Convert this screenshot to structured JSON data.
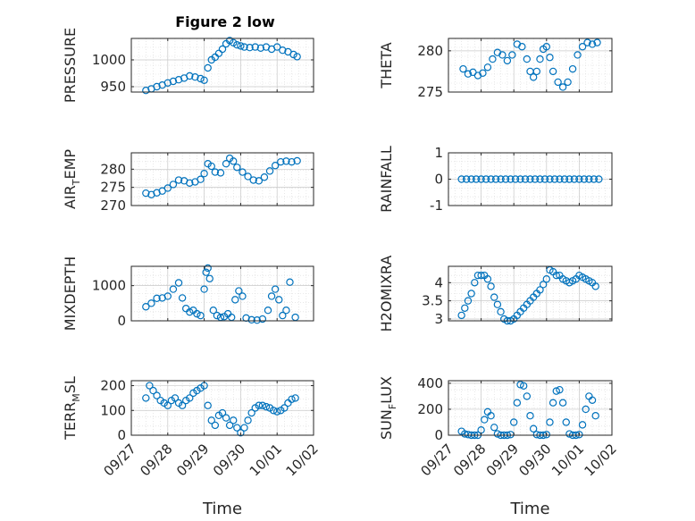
{
  "title": "Figure 2 low",
  "chart_data": [
    {
      "type": "scatter",
      "ylabel": "PRESSURE",
      "ylim": [
        940,
        1040
      ],
      "yticks": [
        950,
        1000
      ],
      "xlim": [
        0,
        5
      ],
      "grid": true,
      "x": [
        0.4,
        0.55,
        0.7,
        0.85,
        1.0,
        1.15,
        1.3,
        1.45,
        1.6,
        1.75,
        1.9,
        2.0,
        2.1,
        2.2,
        2.3,
        2.4,
        2.5,
        2.6,
        2.7,
        2.8,
        2.9,
        3.0,
        3.1,
        3.25,
        3.4,
        3.55,
        3.7,
        3.85,
        4.0,
        4.15,
        4.3,
        4.45,
        4.55
      ],
      "y": [
        943,
        946,
        950,
        953,
        957,
        960,
        963,
        966,
        970,
        968,
        965,
        962,
        985,
        1000,
        1005,
        1012,
        1020,
        1030,
        1036,
        1032,
        1028,
        1026,
        1024,
        1023,
        1024,
        1022,
        1024,
        1020,
        1024,
        1018,
        1015,
        1010,
        1006
      ]
    },
    {
      "type": "scatter",
      "ylabel": "THETA",
      "ylim": [
        275,
        281.5
      ],
      "yticks": [
        275,
        280
      ],
      "xlim": [
        0,
        5
      ],
      "grid": true,
      "x": [
        0.45,
        0.6,
        0.75,
        0.9,
        1.05,
        1.2,
        1.35,
        1.5,
        1.65,
        1.8,
        1.95,
        2.1,
        2.25,
        2.4,
        2.5,
        2.6,
        2.7,
        2.8,
        2.9,
        3.0,
        3.1,
        3.2,
        3.35,
        3.5,
        3.65,
        3.8,
        3.95,
        4.1,
        4.25,
        4.4,
        4.55
      ],
      "y": [
        277.8,
        277.2,
        277.4,
        277.0,
        277.3,
        278.0,
        279.0,
        279.8,
        279.5,
        278.8,
        279.5,
        280.8,
        280.5,
        279.0,
        277.5,
        276.8,
        277.5,
        279.0,
        280.2,
        280.5,
        279.2,
        277.5,
        276.2,
        275.6,
        276.2,
        277.8,
        279.5,
        280.5,
        281.0,
        280.8,
        281.0
      ]
    },
    {
      "type": "scatter",
      "ylabel": "AIR_TEMP",
      "ylim": [
        270,
        284.5
      ],
      "yticks": [
        270,
        275,
        280
      ],
      "xlim": [
        0,
        5
      ],
      "grid": true,
      "x": [
        0.4,
        0.55,
        0.7,
        0.85,
        1.0,
        1.15,
        1.3,
        1.45,
        1.6,
        1.75,
        1.9,
        2.0,
        2.1,
        2.2,
        2.3,
        2.45,
        2.6,
        2.7,
        2.8,
        2.9,
        3.05,
        3.2,
        3.35,
        3.5,
        3.65,
        3.8,
        3.95,
        4.1,
        4.25,
        4.4,
        4.55
      ],
      "y": [
        273.4,
        273.0,
        273.5,
        274.0,
        274.8,
        275.8,
        277.0,
        276.8,
        276.2,
        276.5,
        277.2,
        278.8,
        281.5,
        280.8,
        279.2,
        279.0,
        281.5,
        283.0,
        282.2,
        280.5,
        279.2,
        278.0,
        277.0,
        276.8,
        277.8,
        279.5,
        281.0,
        282.0,
        282.2,
        282.0,
        282.3
      ]
    },
    {
      "type": "scatter",
      "ylabel": "RAINFALL",
      "ylim": [
        -1,
        1
      ],
      "yticks": [
        -1,
        0,
        1
      ],
      "xlim": [
        0,
        5
      ],
      "grid": true,
      "x": [
        0.4,
        0.55,
        0.7,
        0.85,
        1.0,
        1.15,
        1.3,
        1.45,
        1.6,
        1.75,
        1.9,
        2.05,
        2.2,
        2.35,
        2.5,
        2.65,
        2.8,
        2.95,
        3.1,
        3.25,
        3.4,
        3.55,
        3.7,
        3.85,
        4.0,
        4.15,
        4.3,
        4.45,
        4.6
      ],
      "y": [
        0,
        0,
        0,
        0,
        0,
        0,
        0,
        0,
        0,
        0,
        0,
        0,
        0,
        0,
        0,
        0,
        0,
        0,
        0,
        0,
        0,
        0,
        0,
        0,
        0,
        0,
        0,
        0,
        0
      ]
    },
    {
      "type": "scatter",
      "ylabel": "MIXDEPTH",
      "ylim": [
        0,
        1550
      ],
      "yticks": [
        0,
        1000
      ],
      "xlim": [
        0,
        5
      ],
      "grid": true,
      "x": [
        0.4,
        0.55,
        0.7,
        0.85,
        1.0,
        1.15,
        1.3,
        1.4,
        1.5,
        1.6,
        1.7,
        1.8,
        1.9,
        2.0,
        2.05,
        2.1,
        2.15,
        2.25,
        2.35,
        2.45,
        2.55,
        2.65,
        2.75,
        2.85,
        2.95,
        3.05,
        3.15,
        3.3,
        3.45,
        3.6,
        3.75,
        3.85,
        3.95,
        4.05,
        4.15,
        4.25,
        4.35,
        4.5
      ],
      "y": [
        400,
        500,
        640,
        650,
        700,
        900,
        1080,
        650,
        350,
        250,
        300,
        200,
        150,
        900,
        1380,
        1500,
        1200,
        300,
        150,
        100,
        120,
        200,
        100,
        600,
        850,
        700,
        80,
        30,
        20,
        50,
        300,
        700,
        900,
        600,
        150,
        300,
        1100,
        100
      ]
    },
    {
      "type": "scatter",
      "ylabel": "H2OMIXRA",
      "ylim": [
        2.95,
        4.45
      ],
      "yticks": [
        3,
        3.5,
        4
      ],
      "xlim": [
        0,
        5
      ],
      "grid": true,
      "x": [
        0.4,
        0.5,
        0.6,
        0.7,
        0.8,
        0.9,
        1.0,
        1.1,
        1.2,
        1.3,
        1.4,
        1.5,
        1.6,
        1.7,
        1.8,
        1.9,
        2.0,
        2.1,
        2.2,
        2.3,
        2.4,
        2.5,
        2.6,
        2.7,
        2.8,
        2.9,
        3.0,
        3.1,
        3.2,
        3.3,
        3.4,
        3.5,
        3.6,
        3.7,
        3.8,
        3.9,
        4.0,
        4.1,
        4.2,
        4.3,
        4.4,
        4.5
      ],
      "y": [
        3.1,
        3.3,
        3.5,
        3.7,
        4.0,
        4.2,
        4.2,
        4.2,
        4.1,
        3.9,
        3.6,
        3.4,
        3.2,
        3.0,
        2.95,
        2.95,
        3.0,
        3.1,
        3.2,
        3.3,
        3.4,
        3.5,
        3.6,
        3.7,
        3.8,
        3.95,
        4.1,
        4.35,
        4.3,
        4.2,
        4.2,
        4.1,
        4.05,
        4.0,
        4.05,
        4.1,
        4.2,
        4.15,
        4.1,
        4.05,
        4.0,
        3.9
      ]
    },
    {
      "type": "scatter",
      "ylabel": "TERR_MSL",
      "ylim": [
        0,
        220
      ],
      "yticks": [
        0,
        100,
        200
      ],
      "xlim": [
        0,
        5
      ],
      "grid": true,
      "x": [
        0.4,
        0.5,
        0.6,
        0.7,
        0.8,
        0.9,
        1.0,
        1.1,
        1.2,
        1.3,
        1.4,
        1.5,
        1.6,
        1.7,
        1.8,
        1.9,
        2.0,
        2.1,
        2.2,
        2.3,
        2.4,
        2.5,
        2.6,
        2.7,
        2.8,
        2.9,
        3.0,
        3.1,
        3.2,
        3.3,
        3.4,
        3.5,
        3.6,
        3.7,
        3.8,
        3.9,
        4.0,
        4.1,
        4.2,
        4.3,
        4.4,
        4.5
      ],
      "y": [
        150,
        200,
        180,
        160,
        140,
        130,
        120,
        140,
        150,
        130,
        120,
        140,
        150,
        170,
        180,
        190,
        200,
        120,
        60,
        40,
        80,
        90,
        70,
        40,
        60,
        30,
        10,
        30,
        60,
        90,
        110,
        120,
        120,
        115,
        110,
        100,
        95,
        100,
        110,
        130,
        145,
        150
      ]
    },
    {
      "type": "scatter",
      "ylabel": "SUN_FLUX",
      "ylim": [
        0,
        420
      ],
      "yticks": [
        0,
        200,
        400
      ],
      "xlim": [
        0,
        5
      ],
      "grid": true,
      "xticklabels": [
        "09/27",
        "09/28",
        "09/29",
        "09/30",
        "10/01",
        "10/02"
      ],
      "xlabel": "Time",
      "x": [
        0.4,
        0.5,
        0.6,
        0.7,
        0.8,
        0.9,
        1.0,
        1.1,
        1.2,
        1.3,
        1.4,
        1.5,
        1.6,
        1.7,
        1.8,
        1.9,
        2.0,
        2.1,
        2.2,
        2.3,
        2.4,
        2.5,
        2.6,
        2.7,
        2.8,
        2.9,
        3.0,
        3.1,
        3.2,
        3.3,
        3.4,
        3.5,
        3.6,
        3.7,
        3.8,
        3.9,
        4.0,
        4.1,
        4.2,
        4.3,
        4.4,
        4.5
      ],
      "y": [
        30,
        10,
        5,
        0,
        0,
        0,
        40,
        120,
        180,
        150,
        60,
        10,
        0,
        0,
        0,
        5,
        100,
        250,
        390,
        380,
        300,
        150,
        50,
        5,
        0,
        0,
        5,
        100,
        250,
        340,
        350,
        250,
        100,
        10,
        0,
        0,
        5,
        80,
        200,
        300,
        270,
        150
      ]
    }
  ],
  "xaxis_labels": [
    "09/27",
    "09/28",
    "09/29",
    "09/30",
    "10/01",
    "10/02"
  ],
  "xlabel": "Time",
  "series_color": "#0072BD"
}
